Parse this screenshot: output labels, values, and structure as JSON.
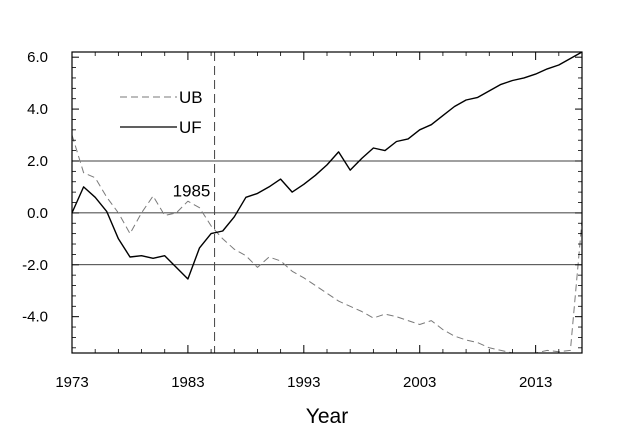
{
  "chart_data": {
    "type": "line",
    "title": "",
    "xlabel": "Year",
    "ylabel": "",
    "xlim": [
      1973,
      2017
    ],
    "ylim": [
      -5.4,
      6.2
    ],
    "x_ticks": [
      1973,
      1983,
      1993,
      2003,
      2013
    ],
    "x_tick_labels": [
      "1973",
      "1983",
      "1993",
      "2003",
      "2013"
    ],
    "y_ticks": [
      -4,
      -2,
      0,
      2,
      4,
      6
    ],
    "y_tick_labels": [
      "-4.0",
      "-2.0",
      "0.0",
      "2.0",
      "4.0",
      "6.0"
    ],
    "grid_lines_y": [
      -2,
      0,
      2
    ],
    "legend_position": "top-left",
    "annotations": [
      {
        "text": "1985",
        "x": 1985.3,
        "y": 0.7,
        "vline_x": 1985.3
      }
    ],
    "series": [
      {
        "name": "UB",
        "style": "dashed",
        "color": "#7a7a7a",
        "points": [
          [
            1973,
            3.0
          ],
          [
            1974,
            1.55
          ],
          [
            1975,
            1.35
          ],
          [
            1976,
            0.6
          ],
          [
            1977,
            0.0
          ],
          [
            1978,
            -0.8
          ],
          [
            1979,
            0.0
          ],
          [
            1980,
            0.65
          ],
          [
            1981,
            -0.1
          ],
          [
            1982,
            0.0
          ],
          [
            1983,
            0.45
          ],
          [
            1984,
            0.2
          ],
          [
            1985,
            -0.5
          ],
          [
            1986,
            -1.0
          ],
          [
            1987,
            -1.4
          ],
          [
            1988,
            -1.65
          ],
          [
            1989,
            -2.1
          ],
          [
            1990,
            -1.7
          ],
          [
            1991,
            -1.85
          ],
          [
            1992,
            -2.25
          ],
          [
            1993,
            -2.5
          ],
          [
            1994,
            -2.8
          ],
          [
            1995,
            -3.1
          ],
          [
            1996,
            -3.4
          ],
          [
            1997,
            -3.6
          ],
          [
            1998,
            -3.8
          ],
          [
            1999,
            -4.05
          ],
          [
            2000,
            -3.9
          ],
          [
            2001,
            -4.0
          ],
          [
            2002,
            -4.15
          ],
          [
            2003,
            -4.3
          ],
          [
            2004,
            -4.15
          ],
          [
            2005,
            -4.5
          ],
          [
            2006,
            -4.75
          ],
          [
            2007,
            -4.9
          ],
          [
            2008,
            -5.0
          ],
          [
            2009,
            -5.2
          ],
          [
            2010,
            -5.3
          ],
          [
            2011,
            -5.4
          ],
          [
            2012,
            -5.4
          ],
          [
            2013,
            -5.4
          ],
          [
            2014,
            -5.3
          ],
          [
            2015,
            -5.35
          ],
          [
            2016,
            -5.3
          ],
          [
            2017,
            -0.3
          ]
        ]
      },
      {
        "name": "UF",
        "style": "solid",
        "color": "#000000",
        "points": [
          [
            1973,
            0.0
          ],
          [
            1974,
            1.0
          ],
          [
            1975,
            0.6
          ],
          [
            1976,
            0.05
          ],
          [
            1977,
            -1.0
          ],
          [
            1978,
            -1.7
          ],
          [
            1979,
            -1.65
          ],
          [
            1980,
            -1.75
          ],
          [
            1981,
            -1.65
          ],
          [
            1982,
            -2.1
          ],
          [
            1983,
            -2.55
          ],
          [
            1984,
            -1.35
          ],
          [
            1985,
            -0.8
          ],
          [
            1986,
            -0.7
          ],
          [
            1987,
            -0.15
          ],
          [
            1988,
            0.6
          ],
          [
            1989,
            0.75
          ],
          [
            1990,
            1.0
          ],
          [
            1991,
            1.3
          ],
          [
            1992,
            0.8
          ],
          [
            1993,
            1.1
          ],
          [
            1994,
            1.45
          ],
          [
            1995,
            1.85
          ],
          [
            1996,
            2.35
          ],
          [
            1997,
            1.65
          ],
          [
            1998,
            2.1
          ],
          [
            1999,
            2.5
          ],
          [
            2000,
            2.4
          ],
          [
            2001,
            2.75
          ],
          [
            2002,
            2.85
          ],
          [
            2003,
            3.2
          ],
          [
            2004,
            3.4
          ],
          [
            2005,
            3.75
          ],
          [
            2006,
            4.1
          ],
          [
            2007,
            4.35
          ],
          [
            2008,
            4.45
          ],
          [
            2009,
            4.7
          ],
          [
            2010,
            4.95
          ],
          [
            2011,
            5.1
          ],
          [
            2012,
            5.2
          ],
          [
            2013,
            5.35
          ],
          [
            2014,
            5.55
          ],
          [
            2015,
            5.7
          ],
          [
            2016,
            5.95
          ],
          [
            2017,
            6.2
          ]
        ]
      }
    ]
  }
}
